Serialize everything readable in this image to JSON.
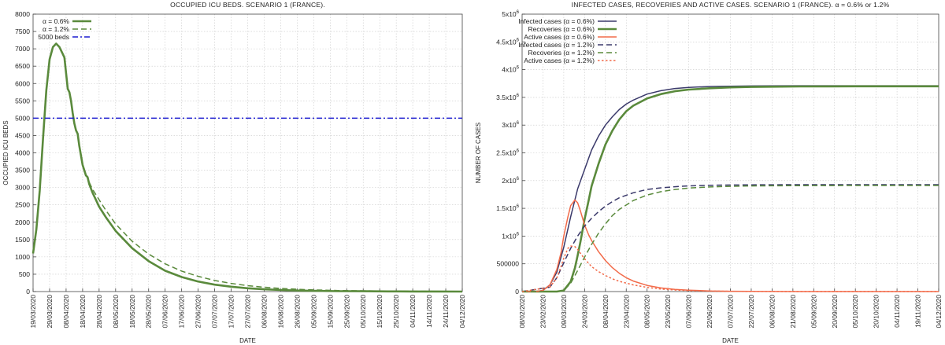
{
  "chart_data": [
    {
      "type": "line",
      "title": "OCCUPIED ICU BEDS. SCENARIO 1 (FRANCE).",
      "xlabel": "DATE",
      "ylabel": "OCCUPIED ICU BEDS",
      "ylim": [
        0,
        8000
      ],
      "yticks": [
        "0",
        "500",
        "1000",
        "1500",
        "2000",
        "2500",
        "3000",
        "3500",
        "4000",
        "4500",
        "5000",
        "5500",
        "6000",
        "6500",
        "7000",
        "7500",
        "8000"
      ],
      "xticks": [
        "19/03/2020",
        "29/03/2020",
        "08/04/2020",
        "18/04/2020",
        "28/04/2020",
        "08/05/2020",
        "18/05/2020",
        "28/05/2020",
        "07/06/2020",
        "17/06/2020",
        "27/06/2020",
        "07/07/2020",
        "17/07/2020",
        "27/07/2020",
        "06/08/2020",
        "16/08/2020",
        "26/08/2020",
        "05/09/2020",
        "15/09/2020",
        "25/09/2020",
        "05/10/2020",
        "15/10/2020",
        "25/10/2020",
        "04/11/2020",
        "14/11/2020",
        "24/11/2020",
        "04/12/2020"
      ],
      "x_unit": "days after 19/03/2020",
      "legend_position": "top-right",
      "grid": true,
      "series": [
        {
          "name": "α = 0.6%",
          "color": "#5a8a3c",
          "style": "solid",
          "x": [
            0,
            2,
            4,
            6,
            8,
            10,
            12,
            14,
            16,
            18,
            19,
            20,
            21,
            22,
            23,
            24,
            25,
            26,
            27,
            28,
            30,
            32,
            33,
            34,
            36,
            38,
            40,
            44,
            50,
            60,
            70,
            80,
            90,
            100,
            110,
            120,
            130,
            140,
            150,
            160,
            170,
            185,
            200,
            215,
            230,
            245,
            260
          ],
          "y": [
            1100,
            1800,
            2900,
            4400,
            5800,
            6700,
            7050,
            7150,
            7050,
            6850,
            6750,
            6300,
            5850,
            5750,
            5500,
            5150,
            4850,
            4650,
            4550,
            4200,
            3650,
            3350,
            3300,
            3100,
            2850,
            2650,
            2450,
            2150,
            1750,
            1250,
            880,
            600,
            420,
            290,
            200,
            140,
            95,
            65,
            45,
            30,
            20,
            12,
            8,
            5,
            3,
            2,
            1
          ]
        },
        {
          "name": "α = 1.2%",
          "color": "#5a8a3c",
          "style": "dashed",
          "x": [
            34,
            36,
            40,
            44,
            50,
            60,
            70,
            80,
            90,
            100,
            110,
            120,
            130,
            140,
            150,
            160,
            170,
            185,
            200,
            215,
            230,
            245,
            260
          ],
          "y": [
            3150,
            2950,
            2650,
            2350,
            1950,
            1450,
            1080,
            800,
            590,
            440,
            320,
            235,
            170,
            125,
            90,
            65,
            47,
            30,
            20,
            13,
            9,
            6,
            4
          ]
        },
        {
          "name": "5000 beds",
          "color": "#1c1ccf",
          "style": "dashdot",
          "x": [
            0,
            260
          ],
          "y": [
            5000,
            5000
          ]
        }
      ]
    },
    {
      "type": "line",
      "title": "INFECTED CASES, RECOVERIES AND ACTIVE CASES. SCENARIO 1 (FRANCE). α = 0.6% or 1.2%",
      "xlabel": "DATE",
      "ylabel": "NUMBER OF CASES",
      "ylim": [
        0,
        5000000
      ],
      "yticks": [
        {
          "base": "0",
          "exp": ""
        },
        {
          "base": "500000",
          "exp": ""
        },
        {
          "base": "1x10",
          "exp": "6"
        },
        {
          "base": "1.5x10",
          "exp": "6"
        },
        {
          "base": "2x10",
          "exp": "6"
        },
        {
          "base": "2.5x10",
          "exp": "6"
        },
        {
          "base": "3x10",
          "exp": "6"
        },
        {
          "base": "3.5x10",
          "exp": "6"
        },
        {
          "base": "4x10",
          "exp": "6"
        },
        {
          "base": "4.5x10",
          "exp": "6"
        },
        {
          "base": "5x10",
          "exp": "6"
        }
      ],
      "xticks": [
        "08/02/2020",
        "23/02/2020",
        "09/03/2020",
        "24/03/2020",
        "08/04/2020",
        "23/04/2020",
        "08/05/2020",
        "23/05/2020",
        "07/06/2020",
        "22/06/2020",
        "07/07/2020",
        "22/07/2020",
        "06/08/2020",
        "21/08/2020",
        "05/09/2020",
        "20/09/2020",
        "05/10/2020",
        "20/10/2020",
        "04/11/2020",
        "19/11/2020",
        "04/12/2020"
      ],
      "x_unit": "days after 08/02/2020",
      "legend_position": "top-left",
      "grid": true,
      "series": [
        {
          "name": "Infected cases (α = 0.6%)",
          "color": "#3b3a6b",
          "style": "solid",
          "x": [
            0,
            10,
            15,
            20,
            25,
            30,
            35,
            40,
            45,
            50,
            55,
            60,
            65,
            70,
            75,
            80,
            90,
            100,
            110,
            120,
            135,
            150,
            165,
            180,
            200,
            220,
            240,
            260,
            280,
            300
          ],
          "y": [
            0,
            2000,
            20000,
            120000,
            350000,
            800000,
            1350000,
            1850000,
            2200000,
            2550000,
            2800000,
            3000000,
            3150000,
            3280000,
            3380000,
            3450000,
            3560000,
            3620000,
            3660000,
            3680000,
            3695000,
            3700000,
            3705000,
            3708000,
            3710000,
            3710000,
            3710000,
            3710000,
            3710000,
            3710000
          ]
        },
        {
          "name": "Recoveries (α = 0.6%)",
          "color": "#5a8a3c",
          "style": "solid",
          "x": [
            0,
            20,
            25,
            30,
            35,
            38,
            40,
            42,
            45,
            48,
            50,
            55,
            60,
            65,
            70,
            75,
            80,
            90,
            100,
            110,
            120,
            135,
            150,
            165,
            180,
            200,
            220,
            240,
            260,
            280,
            300
          ],
          "y": [
            0,
            0,
            0,
            20000,
            180000,
            420000,
            650000,
            900000,
            1300000,
            1650000,
            1900000,
            2300000,
            2650000,
            2900000,
            3100000,
            3250000,
            3350000,
            3480000,
            3560000,
            3610000,
            3640000,
            3665000,
            3680000,
            3688000,
            3693000,
            3697000,
            3699000,
            3700000,
            3700000,
            3700000,
            3700000
          ]
        },
        {
          "name": "Active cases (α = 0.6%)",
          "color": "#f26b4a",
          "style": "solid",
          "x": [
            0,
            10,
            15,
            20,
            25,
            28,
            30,
            33,
            35,
            38,
            40,
            42,
            45,
            48,
            50,
            55,
            60,
            65,
            70,
            75,
            80,
            90,
            100,
            110,
            120,
            135,
            150,
            165,
            180,
            200,
            220,
            240,
            260,
            280,
            300
          ],
          "y": [
            0,
            2000,
            20000,
            120000,
            400000,
            700000,
            1000000,
            1350000,
            1550000,
            1650000,
            1600000,
            1450000,
            1200000,
            1020000,
            920000,
            720000,
            560000,
            430000,
            330000,
            250000,
            190000,
            110000,
            65000,
            40000,
            25000,
            12000,
            6000,
            3000,
            1500,
            700,
            300,
            150,
            80,
            40,
            20
          ]
        },
        {
          "name": "Infected cases (α = 1.2%)",
          "color": "#3b3a6b",
          "style": "dashed",
          "x": [
            0,
            20,
            25,
            30,
            35,
            40,
            45,
            50,
            55,
            60,
            65,
            70,
            80,
            90,
            100,
            110,
            120,
            135,
            150,
            165,
            180,
            200,
            220,
            240,
            260,
            280,
            300
          ],
          "y": [
            0,
            80000,
            250000,
            520000,
            780000,
            1000000,
            1180000,
            1320000,
            1440000,
            1540000,
            1620000,
            1690000,
            1780000,
            1840000,
            1870000,
            1890000,
            1905000,
            1915000,
            1920000,
            1923000,
            1925000,
            1926000,
            1927000,
            1927000,
            1927000,
            1927000,
            1927000
          ]
        },
        {
          "name": "Recoveries (α = 1.2%)",
          "color": "#5a8a3c",
          "style": "dashed",
          "x": [
            0,
            25,
            30,
            35,
            40,
            45,
            50,
            55,
            60,
            65,
            70,
            80,
            90,
            100,
            110,
            120,
            135,
            150,
            165,
            180,
            200,
            220,
            240,
            260,
            280,
            300
          ],
          "y": [
            0,
            0,
            20000,
            150000,
            380000,
            620000,
            850000,
            1050000,
            1220000,
            1370000,
            1480000,
            1640000,
            1740000,
            1800000,
            1840000,
            1865000,
            1885000,
            1897000,
            1903000,
            1907000,
            1910000,
            1911000,
            1912000,
            1912000,
            1912000,
            1912000
          ]
        },
        {
          "name": "Active cases (α = 1.2%)",
          "color": "#f26b4a",
          "style": "dotted",
          "x": [
            0,
            20,
            25,
            28,
            30,
            33,
            35,
            38,
            40,
            42,
            45,
            50,
            55,
            60,
            65,
            70,
            80,
            90,
            100,
            110,
            120,
            135,
            150,
            165,
            180,
            200,
            220,
            240,
            260,
            280,
            300
          ],
          "y": [
            0,
            80000,
            250000,
            450000,
            600000,
            780000,
            820000,
            810000,
            760000,
            690000,
            590000,
            450000,
            360000,
            290000,
            230000,
            185000,
            120000,
            75000,
            45000,
            28000,
            17000,
            8000,
            4000,
            2000,
            1000,
            500,
            200,
            100,
            50,
            20,
            10
          ]
        }
      ]
    }
  ]
}
